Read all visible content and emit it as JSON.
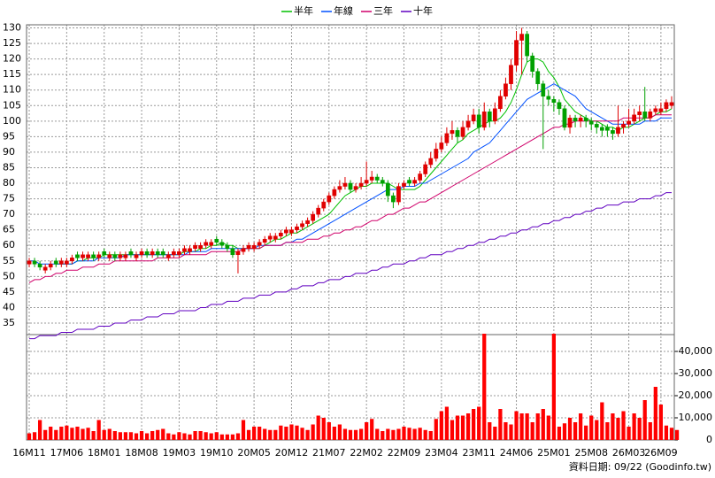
{
  "chart_data": {
    "type": "candlestick",
    "legend": "top",
    "footer": "資料日期: 09/22 (Goodinfo.tw)",
    "grid": true,
    "up_color": "#e00000",
    "down_color": "#00a000",
    "ylim": [
      31.3,
      131
    ],
    "yticks": [
      35,
      40,
      45,
      50,
      55,
      60,
      65,
      70,
      75,
      80,
      85,
      90,
      95,
      100,
      105,
      110,
      115,
      120,
      125,
      130
    ],
    "categories": [
      "16M11",
      null,
      null,
      null,
      null,
      null,
      null,
      "17M06",
      null,
      null,
      null,
      null,
      null,
      null,
      "18M01",
      null,
      null,
      null,
      null,
      null,
      null,
      "18M08",
      null,
      null,
      null,
      null,
      null,
      null,
      "19M03",
      null,
      null,
      null,
      null,
      null,
      null,
      "19M10",
      null,
      null,
      null,
      null,
      null,
      null,
      "20M05",
      null,
      null,
      null,
      null,
      null,
      null,
      "20M12",
      null,
      null,
      null,
      null,
      null,
      null,
      "21M07",
      null,
      null,
      null,
      null,
      null,
      null,
      "22M02",
      null,
      null,
      null,
      null,
      null,
      null,
      "22M09",
      null,
      null,
      null,
      null,
      null,
      null,
      "23M04",
      null,
      null,
      null,
      null,
      null,
      null,
      "23M11",
      null,
      null,
      null,
      null,
      null,
      null,
      "24M06",
      null,
      null,
      null,
      null,
      null,
      null,
      "25M01",
      null,
      null,
      null,
      null,
      null,
      null,
      "25M08",
      null,
      null,
      null,
      null,
      null,
      null,
      "26M03",
      null,
      null,
      null,
      null,
      null,
      "26M09",
      null,
      null
    ],
    "open": [
      54,
      55,
      54,
      52,
      53,
      55,
      54,
      54,
      55,
      57,
      56,
      56,
      57,
      56,
      58,
      56,
      57,
      56,
      56,
      58,
      56,
      57,
      58,
      57,
      58,
      58,
      56,
      57,
      57,
      58,
      58,
      59,
      59,
      60,
      60,
      62,
      61,
      60,
      59,
      57,
      58,
      59,
      59,
      60,
      61,
      62,
      62,
      63,
      64,
      64,
      65,
      66,
      67,
      68,
      70,
      72,
      74,
      76,
      78,
      79,
      80,
      78,
      79,
      80,
      81,
      82,
      81,
      80,
      76,
      74,
      79,
      81,
      80,
      81,
      83,
      86,
      88,
      91,
      93,
      96,
      97,
      95,
      98,
      100,
      102,
      98,
      103,
      100,
      104,
      108,
      112,
      118,
      126,
      128,
      121,
      116,
      112,
      108,
      107,
      106,
      104,
      98,
      101,
      100,
      101,
      100,
      99,
      98,
      98,
      97,
      96,
      98,
      99,
      100,
      102,
      103,
      101,
      103,
      103,
      104,
      105
    ],
    "high": [
      56,
      56,
      55,
      54,
      55,
      56,
      56,
      56,
      57,
      58,
      58,
      58,
      58,
      58,
      59,
      58,
      58,
      58,
      58,
      59,
      58,
      59,
      59,
      59,
      59,
      59,
      58,
      59,
      59,
      60,
      60,
      61,
      61,
      62,
      62,
      63,
      62,
      61,
      60,
      59,
      60,
      61,
      61,
      62,
      63,
      64,
      64,
      65,
      66,
      66,
      67,
      68,
      69,
      71,
      73,
      75,
      77,
      79,
      81,
      82,
      81,
      80,
      82,
      87,
      84,
      83,
      82,
      81,
      77,
      80,
      81,
      82,
      82,
      84,
      87,
      90,
      93,
      95,
      98,
      100,
      98,
      100,
      102,
      104,
      104,
      106,
      104,
      106,
      110,
      114,
      120,
      129,
      130,
      129,
      122,
      117,
      113,
      110,
      108,
      107,
      105,
      102,
      102,
      102,
      102,
      101,
      100,
      99,
      99,
      98,
      105,
      100,
      104,
      104,
      105,
      111,
      104,
      105,
      106,
      107,
      108
    ],
    "low": [
      53,
      53,
      52,
      51,
      52,
      53,
      53,
      53,
      54,
      55,
      55,
      55,
      55,
      55,
      56,
      55,
      55,
      55,
      55,
      56,
      55,
      56,
      56,
      56,
      56,
      56,
      55,
      56,
      56,
      57,
      57,
      58,
      58,
      59,
      59,
      60,
      59,
      58,
      56,
      51,
      57,
      58,
      58,
      59,
      60,
      61,
      61,
      62,
      63,
      63,
      64,
      65,
      66,
      67,
      69,
      71,
      73,
      75,
      77,
      78,
      77,
      77,
      78,
      79,
      80,
      80,
      79,
      74,
      72,
      73,
      78,
      79,
      79,
      80,
      82,
      85,
      87,
      90,
      92,
      94,
      93,
      94,
      97,
      99,
      96,
      97,
      98,
      99,
      103,
      107,
      110,
      116,
      115,
      119,
      114,
      110,
      91,
      105,
      103,
      102,
      97,
      96,
      98,
      98,
      98,
      97,
      96,
      95,
      95,
      94,
      95,
      96,
      98,
      99,
      100,
      100,
      100,
      102,
      102,
      103,
      104
    ],
    "close": [
      55,
      54,
      53,
      53,
      54,
      54,
      55,
      55,
      56,
      56,
      57,
      57,
      56,
      57,
      57,
      57,
      56,
      57,
      57,
      57,
      57,
      58,
      57,
      58,
      57,
      57,
      57,
      58,
      58,
      59,
      59,
      60,
      60,
      61,
      61,
      61,
      60,
      59,
      57,
      58,
      59,
      60,
      60,
      61,
      62,
      63,
      63,
      64,
      65,
      65,
      66,
      67,
      68,
      70,
      72,
      74,
      76,
      78,
      79,
      80,
      78,
      79,
      80,
      81,
      82,
      81,
      80,
      76,
      74,
      79,
      80,
      80,
      81,
      83,
      86,
      88,
      91,
      93,
      96,
      97,
      95,
      98,
      100,
      102,
      98,
      103,
      100,
      104,
      108,
      112,
      118,
      126,
      128,
      121,
      116,
      112,
      108,
      107,
      106,
      104,
      98,
      101,
      100,
      101,
      100,
      99,
      98,
      97,
      97,
      96,
      98,
      99,
      100,
      102,
      103,
      101,
      103,
      104,
      104,
      106,
      106
    ],
    "series": [
      {
        "name": "半年",
        "color": "#00c000",
        "values": [
          null,
          null,
          null,
          null,
          null,
          54,
          54,
          54,
          54,
          55,
          55,
          56,
          56,
          56,
          57,
          57,
          57,
          57,
          57,
          57,
          57,
          57,
          57,
          57,
          57,
          57,
          57,
          57,
          57,
          58,
          58,
          58,
          59,
          59,
          60,
          60,
          61,
          60,
          60,
          59,
          59,
          59,
          59,
          59,
          60,
          61,
          62,
          62,
          63,
          64,
          64,
          65,
          66,
          67,
          68,
          69,
          70,
          72,
          74,
          76,
          77,
          78,
          79,
          79,
          80,
          80,
          80,
          80,
          79,
          78,
          78,
          78,
          78,
          79,
          81,
          83,
          85,
          87,
          89,
          91,
          93,
          94,
          96,
          97,
          98,
          99,
          100,
          100,
          101,
          103,
          106,
          110,
          115,
          119,
          120,
          120,
          119,
          116,
          114,
          111,
          107,
          105,
          103,
          102,
          101,
          100,
          100,
          99,
          98,
          98,
          97,
          98,
          98,
          99,
          100,
          101,
          101,
          102,
          103,
          103,
          104
        ]
      },
      {
        "name": "年線",
        "color": "#0050ff",
        "values": [
          55,
          55,
          54,
          54,
          54,
          54,
          54,
          54,
          54,
          55,
          55,
          55,
          55,
          56,
          56,
          56,
          56,
          56,
          57,
          57,
          57,
          57,
          57,
          57,
          57,
          57,
          57,
          57,
          57,
          57,
          58,
          58,
          58,
          58,
          59,
          59,
          59,
          59,
          59,
          59,
          59,
          59,
          59,
          60,
          60,
          60,
          60,
          60,
          61,
          61,
          62,
          62,
          63,
          64,
          65,
          66,
          67,
          68,
          69,
          70,
          71,
          72,
          73,
          74,
          75,
          76,
          77,
          78,
          78,
          78,
          79,
          79,
          79,
          80,
          80,
          81,
          82,
          83,
          84,
          85,
          86,
          87,
          88,
          90,
          91,
          92,
          93,
          95,
          97,
          99,
          101,
          103,
          105,
          107,
          108,
          109,
          110,
          111,
          112,
          111,
          110,
          109,
          108,
          106,
          104,
          103,
          102,
          101,
          100,
          99,
          99,
          99,
          99,
          99,
          99,
          100,
          100,
          100,
          101,
          101,
          101
        ]
      },
      {
        "name": "三年",
        "color": "#d0006a",
        "values": [
          48,
          49,
          49,
          50,
          50,
          51,
          51,
          52,
          52,
          52,
          53,
          53,
          53,
          54,
          54,
          54,
          55,
          55,
          55,
          55,
          55,
          55,
          55,
          55,
          56,
          56,
          56,
          56,
          56,
          57,
          57,
          57,
          57,
          57,
          58,
          58,
          58,
          58,
          58,
          58,
          59,
          59,
          59,
          59,
          60,
          60,
          60,
          60,
          61,
          61,
          61,
          61,
          62,
          62,
          62,
          63,
          63,
          64,
          64,
          65,
          65,
          66,
          66,
          67,
          68,
          68,
          69,
          70,
          70,
          71,
          72,
          72,
          73,
          74,
          74,
          75,
          76,
          77,
          78,
          79,
          80,
          81,
          82,
          83,
          84,
          85,
          86,
          87,
          88,
          89,
          90,
          91,
          92,
          93,
          94,
          95,
          96,
          97,
          98,
          98,
          99,
          99,
          100,
          100,
          100,
          100,
          100,
          100,
          100,
          100,
          100,
          101,
          101,
          101,
          101,
          101,
          101,
          102,
          102,
          102,
          102
        ]
      },
      {
        "name": "十年",
        "color": "#6000c0",
        "values": [
          30,
          30,
          31,
          31,
          31,
          31,
          32,
          32,
          32,
          33,
          33,
          33,
          33,
          34,
          34,
          34,
          35,
          35,
          35,
          36,
          36,
          36,
          37,
          37,
          37,
          38,
          38,
          38,
          39,
          39,
          39,
          39,
          40,
          40,
          41,
          41,
          41,
          42,
          42,
          42,
          43,
          43,
          43,
          44,
          44,
          44,
          45,
          45,
          45,
          46,
          46,
          47,
          47,
          47,
          48,
          48,
          49,
          49,
          49,
          50,
          50,
          51,
          51,
          51,
          52,
          52,
          53,
          53,
          54,
          54,
          54,
          55,
          55,
          56,
          56,
          57,
          57,
          57,
          58,
          58,
          59,
          59,
          60,
          60,
          61,
          61,
          62,
          62,
          63,
          63,
          64,
          64,
          65,
          65,
          66,
          66,
          67,
          67,
          68,
          68,
          69,
          69,
          70,
          70,
          71,
          71,
          72,
          72,
          73,
          73,
          73,
          74,
          74,
          74,
          75,
          75,
          75,
          76,
          76,
          77,
          77
        ]
      }
    ],
    "volume": {
      "color": "#ff0000",
      "y2lim": [
        0,
        47600
      ],
      "y2ticks": [
        0,
        {
          "value": 10000,
          "label": "10,000"
        },
        {
          "value": 20000,
          "label": "20,000"
        },
        {
          "value": 30000,
          "label": "30,000"
        },
        {
          "value": 40000,
          "label": "40,000"
        }
      ],
      "values": [
        3000,
        3500,
        9000,
        4500,
        6000,
        4500,
        6000,
        6500,
        5500,
        6000,
        5000,
        5500,
        4000,
        9000,
        4500,
        5000,
        4000,
        3500,
        3500,
        3500,
        3000,
        4000,
        3000,
        4000,
        4500,
        5000,
        3000,
        2500,
        3500,
        3000,
        2500,
        4000,
        4000,
        3500,
        3000,
        3500,
        2500,
        2500,
        2500,
        3000,
        9000,
        4500,
        6000,
        6000,
        5000,
        4500,
        4500,
        6500,
        6000,
        7000,
        6500,
        5500,
        4500,
        7000,
        11000,
        10000,
        8000,
        6000,
        7000,
        5000,
        4500,
        4500,
        5000,
        8000,
        9500,
        5000,
        4000,
        5000,
        4500,
        5000,
        6000,
        5500,
        5000,
        5500,
        4500,
        4000,
        9500,
        13000,
        15000,
        9000,
        11000,
        11000,
        12000,
        14000,
        15000,
        48000,
        8000,
        6000,
        14000,
        8000,
        7000,
        13000,
        12000,
        12000,
        8000,
        12000,
        14000,
        11000,
        48000,
        6000,
        7500,
        10000,
        8000,
        12000,
        6500,
        11000,
        9000,
        17000,
        8000,
        12000,
        10000,
        13000,
        6000,
        12000,
        10000,
        18000,
        8000,
        24000,
        16000,
        6500,
        5500,
        4500
      ]
    }
  }
}
